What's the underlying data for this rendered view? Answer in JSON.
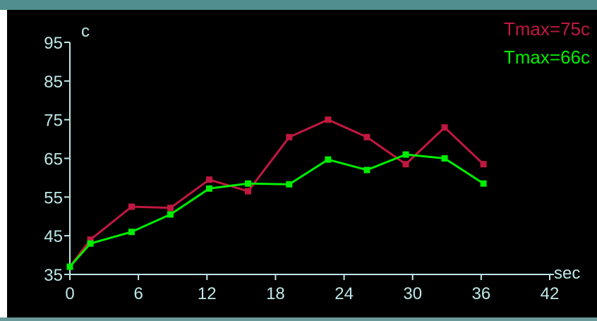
{
  "chart_data": {
    "type": "line",
    "title": "",
    "xlabel": "sec",
    "ylabel": "c",
    "xlim": [
      0,
      42
    ],
    "ylim": [
      35,
      95
    ],
    "x_ticks": [
      0,
      6,
      12,
      18,
      24,
      30,
      36,
      42
    ],
    "y_ticks": [
      35,
      45,
      55,
      65,
      75,
      85,
      95
    ],
    "grid": false,
    "legend_position": "top-right",
    "legend": [
      {
        "label": "Tmax=75c",
        "color": "#c0183f"
      },
      {
        "label": "Tmax=66c",
        "color": "#00ee00"
      }
    ],
    "series": [
      {
        "color": "#c0183f",
        "x": [
          0,
          1.8,
          5.4,
          8.8,
          12.2,
          15.6,
          19.2,
          22.6,
          26.0,
          29.4,
          32.8,
          36.2
        ],
        "y": [
          37,
          44,
          52.5,
          52.2,
          59.5,
          56.5,
          70.5,
          75,
          70.5,
          63.5,
          73,
          63.5
        ]
      },
      {
        "color": "#00ee00",
        "x": [
          0,
          1.8,
          5.4,
          8.8,
          12.2,
          15.6,
          19.2,
          22.6,
          26.0,
          29.4,
          32.8,
          36.2
        ],
        "y": [
          37,
          43,
          46,
          50.5,
          57.2,
          58.5,
          58.3,
          64.7,
          62,
          66,
          65,
          58.5
        ]
      }
    ]
  }
}
